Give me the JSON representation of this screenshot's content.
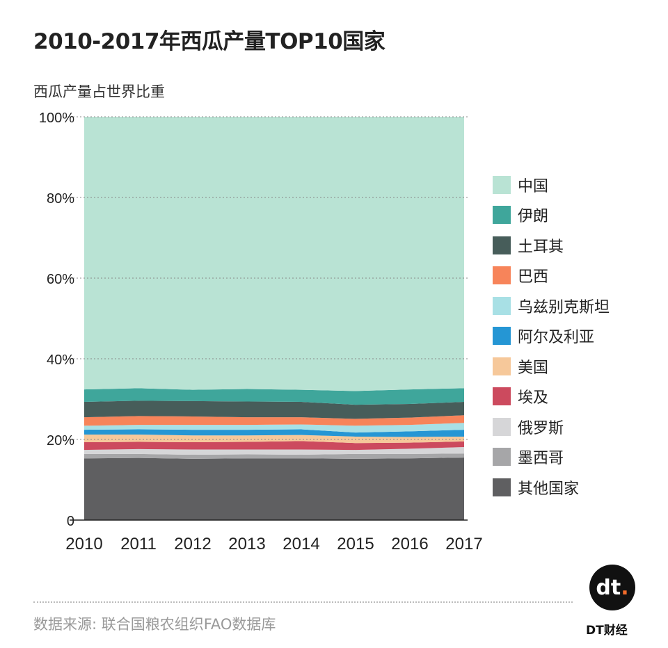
{
  "title": "2010-2017年西瓜产量TOP10国家",
  "source": "数据来源: 联合国粮农组织FAO数据库",
  "logo": {
    "text": "DT财经",
    "mark": "dt"
  },
  "chart_data": {
    "type": "area",
    "stacked": true,
    "ylabel": "西瓜产量占世界比重",
    "ylim": [
      0,
      100
    ],
    "yticks": [
      "0",
      "20%",
      "40%",
      "60%",
      "80%",
      "100%"
    ],
    "grid": true,
    "legend_position": "right",
    "categories": [
      "2010",
      "2011",
      "2012",
      "2013",
      "2014",
      "2015",
      "2016",
      "2017"
    ],
    "series": [
      {
        "name": "其他国家",
        "color": "#5f5f61",
        "values": [
          15.3,
          15.4,
          15.2,
          15.3,
          15.3,
          15.2,
          15.3,
          15.5
        ]
      },
      {
        "name": "墨西哥",
        "color": "#a6a6a8",
        "values": [
          1.1,
          1.0,
          1.0,
          1.0,
          0.9,
          1.2,
          1.1,
          1.0
        ]
      },
      {
        "name": "俄罗斯",
        "color": "#d6d6d8",
        "values": [
          1.0,
          1.2,
          1.3,
          1.2,
          1.3,
          1.0,
          1.3,
          1.6
        ]
      },
      {
        "name": "埃及",
        "color": "#cc4a5e",
        "values": [
          1.9,
          1.8,
          1.8,
          1.9,
          2.1,
          1.7,
          1.5,
          1.4
        ]
      },
      {
        "name": "美国",
        "color": "#f6c89a",
        "values": [
          1.9,
          1.8,
          1.7,
          1.6,
          1.5,
          1.6,
          1.4,
          1.2
        ]
      },
      {
        "name": "阿尔及利亚",
        "color": "#2596d4",
        "values": [
          1.2,
          1.3,
          1.4,
          1.4,
          1.4,
          1.0,
          1.4,
          1.7
        ]
      },
      {
        "name": "乌兹别克斯坦",
        "color": "#a8e0e5",
        "values": [
          1.0,
          1.1,
          1.2,
          1.2,
          1.2,
          1.7,
          1.6,
          1.7
        ]
      },
      {
        "name": "巴西",
        "color": "#f7845a",
        "values": [
          2.1,
          2.2,
          2.1,
          1.9,
          1.8,
          1.7,
          1.8,
          1.9
        ]
      },
      {
        "name": "土耳其",
        "color": "#475d5a",
        "values": [
          3.8,
          3.8,
          3.8,
          3.9,
          3.8,
          3.5,
          3.4,
          3.3
        ]
      },
      {
        "name": "伊朗",
        "color": "#3fa69b",
        "values": [
          3.1,
          3.1,
          2.8,
          3.1,
          3.0,
          3.4,
          3.6,
          3.4
        ]
      },
      {
        "name": "中国",
        "color": "#b9e3d4",
        "values": [
          67.6,
          67.3,
          67.7,
          67.5,
          67.7,
          68.0,
          67.6,
          67.3
        ]
      }
    ]
  }
}
